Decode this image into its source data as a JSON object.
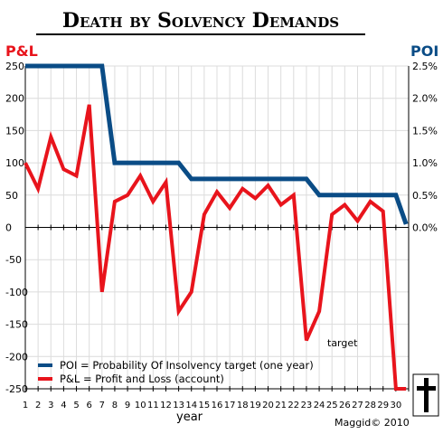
{
  "chart_data": {
    "type": "line",
    "title": "Death by Solvency Demands",
    "left_axis_title": "P&L",
    "right_axis_title": "POI",
    "xlabel": "year",
    "x": [
      1,
      2,
      3,
      4,
      5,
      6,
      7,
      8,
      9,
      10,
      11,
      12,
      13,
      14,
      15,
      16,
      17,
      18,
      19,
      20,
      21,
      22,
      23,
      24,
      25,
      26,
      27,
      28,
      29,
      30,
      31
    ],
    "x_tick_labels": [
      "1",
      "2",
      "3",
      "4",
      "5",
      "6",
      "7",
      "8",
      "9",
      "10",
      "11",
      "12",
      "13",
      "14",
      "15",
      "16",
      "17",
      "18",
      "19",
      "20",
      "21",
      "22",
      "23",
      "24",
      "25",
      "26",
      "27",
      "28",
      "29",
      "30"
    ],
    "ylim_left": [
      -250,
      250
    ],
    "yticks_left": [
      "250",
      "200",
      "150",
      "100",
      "50",
      "0",
      "-50",
      "-100",
      "-150",
      "-200",
      "-250"
    ],
    "ylim_right": [
      0,
      2.5
    ],
    "yticks_right": [
      "2.5%",
      "2.0%",
      "1.5%",
      "1.0%",
      "0.5%",
      "0.0%"
    ],
    "grid": true,
    "legend_position": "bottom-left",
    "series": [
      {
        "name": "POI = Probability Of Insolvency target (one year)",
        "axis": "right",
        "color": "#0a4c86",
        "x": [
          1,
          2,
          3,
          4,
          5,
          6,
          7,
          8,
          9,
          10,
          11,
          12,
          13,
          14,
          15,
          16,
          17,
          18,
          19,
          20,
          21,
          22,
          23,
          24,
          25,
          26,
          27,
          28,
          29,
          30,
          30.8
        ],
        "values": [
          2.5,
          2.5,
          2.5,
          2.5,
          2.5,
          2.5,
          2.5,
          1.0,
          1.0,
          1.0,
          1.0,
          1.0,
          1.0,
          0.75,
          0.75,
          0.75,
          0.75,
          0.75,
          0.75,
          0.75,
          0.75,
          0.75,
          0.75,
          0.5,
          0.5,
          0.5,
          0.5,
          0.5,
          0.5,
          0.5,
          0.05
        ]
      },
      {
        "name": "P&L = Profit and Loss (account)",
        "axis": "left",
        "color": "#e8141c",
        "x": [
          1,
          2,
          3,
          4,
          5,
          6,
          7,
          8,
          9,
          10,
          11,
          12,
          13,
          14,
          15,
          16,
          17,
          18,
          19,
          20,
          21,
          22,
          23,
          24,
          25,
          26,
          27,
          28,
          29,
          30,
          30.8
        ],
        "values": [
          100,
          60,
          140,
          90,
          80,
          190,
          -100,
          40,
          50,
          80,
          40,
          70,
          -130,
          -100,
          20,
          55,
          30,
          60,
          45,
          65,
          35,
          50,
          -175,
          -130,
          20,
          35,
          10,
          40,
          25,
          -250,
          -250
        ]
      }
    ],
    "annotations": [
      {
        "text": "target"
      },
      {
        "text": "Maggid© 2010"
      },
      {
        "text": "cross-icon"
      }
    ]
  }
}
